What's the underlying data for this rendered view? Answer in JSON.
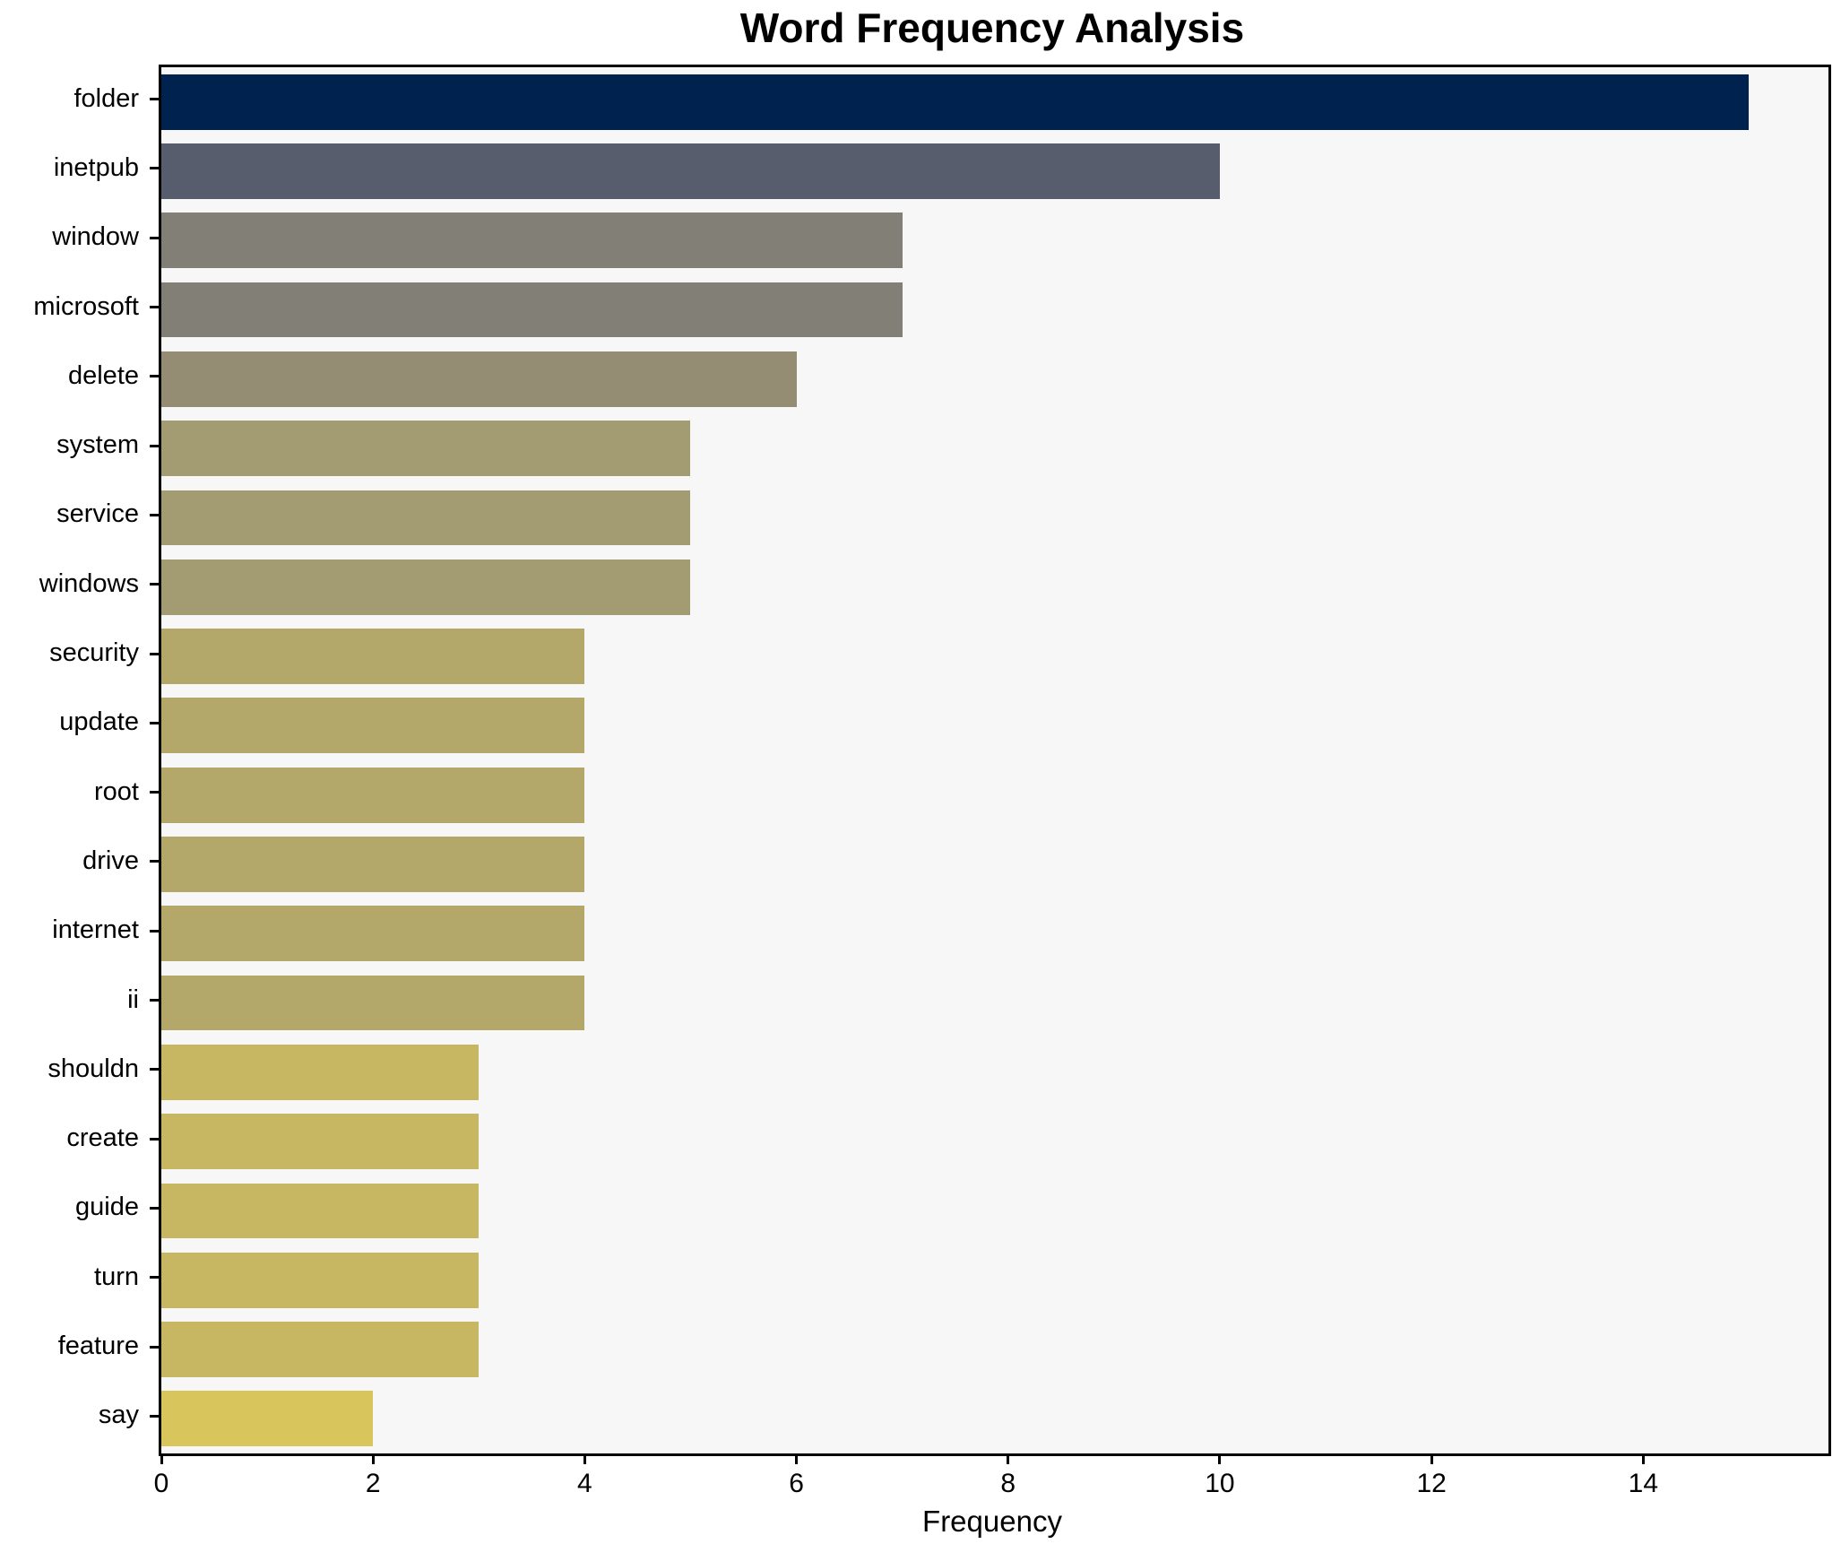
{
  "chart_data": {
    "type": "bar",
    "orientation": "horizontal",
    "title": "Word Frequency Analysis",
    "xlabel": "Frequency",
    "ylabel": "",
    "categories": [
      "folder",
      "inetpub",
      "window",
      "microsoft",
      "delete",
      "system",
      "service",
      "windows",
      "security",
      "update",
      "root",
      "drive",
      "internet",
      "ii",
      "shouldn",
      "create",
      "guide",
      "turn",
      "feature",
      "say"
    ],
    "values": [
      15,
      10,
      7,
      7,
      6,
      5,
      5,
      5,
      4,
      4,
      4,
      4,
      4,
      4,
      3,
      3,
      3,
      3,
      3,
      2
    ],
    "bar_colors": [
      "#00224e",
      "#575d6d",
      "#827f77",
      "#827f77",
      "#948d74",
      "#a39b71",
      "#a39b71",
      "#a39b71",
      "#b4a76a",
      "#b4a76a",
      "#b4a76a",
      "#b4a76a",
      "#b4a76a",
      "#b4a76a",
      "#c8b762",
      "#c8b762",
      "#c8b762",
      "#c8b762",
      "#c8b762",
      "#d8c65c"
    ],
    "xlim": [
      0,
      15.75
    ],
    "x_ticks": [
      0,
      2,
      4,
      6,
      8,
      10,
      12,
      14
    ],
    "grid": false,
    "legend": false,
    "plot_background": "#f7f7f7",
    "figure_background": "#ffffff",
    "spine_color": "#000000",
    "colormap": "cividis"
  }
}
